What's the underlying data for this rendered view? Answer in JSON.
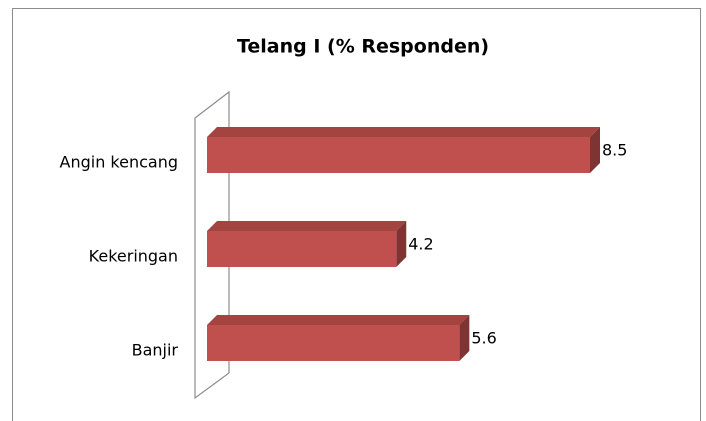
{
  "chart_data": {
    "type": "bar",
    "orientation": "horizontal",
    "title": "Telang I  (% Responden)",
    "categories": [
      "Angin kencang",
      "Kekeringan",
      "Banjir"
    ],
    "values": [
      8.5,
      4.2,
      5.6
    ],
    "color": "#c0504d"
  }
}
